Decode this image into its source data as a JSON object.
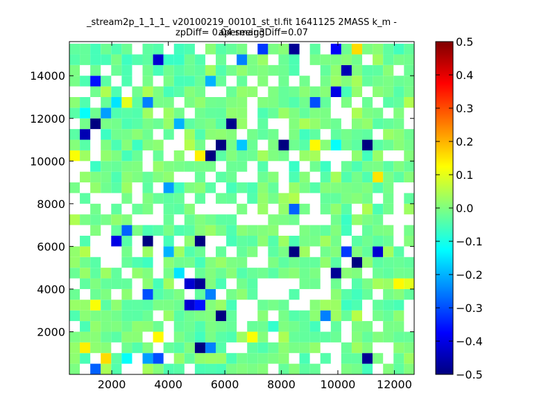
{
  "chart_data": {
    "type": "heatmap",
    "title": "_stream2p_1_1_1_ v20100219_00101_st_tl.fit 1641125 2MASS k_m - apermag3",
    "subtitle": "zpDiff= 0.04 seeingDiff=0.07",
    "xlim": [
      500,
      12700
    ],
    "ylim": [
      0,
      15600
    ],
    "xticks": [
      "2000",
      "4000",
      "6000",
      "8000",
      "10000",
      "12000"
    ],
    "yticks": [
      "2000",
      "4000",
      "6000",
      "8000",
      "10000",
      "12000",
      "14000"
    ],
    "bin": {
      "x0": 500,
      "y0": 0,
      "dx": 370,
      "dy": 500,
      "nx": 33,
      "ny": 31
    },
    "colorbar": {
      "min": -0.5,
      "max": 0.5,
      "colormap": "jet",
      "ticks": [
        "0.5",
        "0.4",
        "0.3",
        "0.2",
        "0.1",
        "0.0",
        "−0.1",
        "−0.2",
        "−0.3",
        "−0.4",
        "−0.5"
      ]
    },
    "outlier_cells": [
      {
        "ix": 8,
        "iy": 29,
        "value": -0.42
      },
      {
        "ix": 2,
        "iy": 27,
        "value": -0.36
      },
      {
        "ix": 16,
        "iy": 29,
        "value": -0.25
      },
      {
        "ix": 18,
        "iy": 30,
        "value": -0.32
      },
      {
        "ix": 21,
        "iy": 30,
        "value": -0.48
      },
      {
        "ix": 25,
        "iy": 30,
        "value": -0.38
      },
      {
        "ix": 26,
        "iy": 28,
        "value": -0.45
      },
      {
        "ix": 23,
        "iy": 25,
        "value": -0.3
      },
      {
        "ix": 25,
        "iy": 26,
        "value": -0.4
      },
      {
        "ix": 13,
        "iy": 27,
        "value": -0.2
      },
      {
        "ix": 4,
        "iy": 25,
        "value": -0.15
      },
      {
        "ix": 3,
        "iy": 24,
        "value": -0.22
      },
      {
        "ix": 7,
        "iy": 25,
        "value": -0.25
      },
      {
        "ix": 1,
        "iy": 24,
        "value": -0.12
      },
      {
        "ix": 2,
        "iy": 23,
        "value": -0.5
      },
      {
        "ix": 1,
        "iy": 22,
        "value": -0.45
      },
      {
        "ix": 15,
        "iy": 23,
        "value": -0.49
      },
      {
        "ix": 10,
        "iy": 23,
        "value": -0.2
      },
      {
        "ix": 14,
        "iy": 21,
        "value": -0.5
      },
      {
        "ix": 13,
        "iy": 20,
        "value": -0.5
      },
      {
        "ix": 20,
        "iy": 21,
        "value": -0.5
      },
      {
        "ix": 25,
        "iy": 21,
        "value": -0.12
      },
      {
        "ix": 28,
        "iy": 21,
        "value": -0.5
      },
      {
        "ix": 9,
        "iy": 17,
        "value": -0.22
      },
      {
        "ix": 16,
        "iy": 21,
        "value": -0.18
      },
      {
        "ix": 21,
        "iy": 15,
        "value": -0.28
      },
      {
        "ix": 5,
        "iy": 13,
        "value": -0.28
      },
      {
        "ix": 4,
        "iy": 12,
        "value": -0.4
      },
      {
        "ix": 7,
        "iy": 12,
        "value": -0.5
      },
      {
        "ix": 12,
        "iy": 12,
        "value": -0.5
      },
      {
        "ix": 21,
        "iy": 11,
        "value": -0.5
      },
      {
        "ix": 26,
        "iy": 11,
        "value": -0.32
      },
      {
        "ix": 29,
        "iy": 11,
        "value": -0.42
      },
      {
        "ix": 27,
        "iy": 10,
        "value": -0.5
      },
      {
        "ix": 25,
        "iy": 9,
        "value": -0.48
      },
      {
        "ix": 9,
        "iy": 11,
        "value": -0.2
      },
      {
        "ix": 10,
        "iy": 9,
        "value": -0.15
      },
      {
        "ix": 11,
        "iy": 8,
        "value": -0.42
      },
      {
        "ix": 12,
        "iy": 8,
        "value": -0.48
      },
      {
        "ix": 7,
        "iy": 7,
        "value": -0.3
      },
      {
        "ix": 13,
        "iy": 7,
        "value": -0.25
      },
      {
        "ix": 12,
        "iy": 6,
        "value": -0.36
      },
      {
        "ix": 11,
        "iy": 6,
        "value": -0.42
      },
      {
        "ix": 14,
        "iy": 5,
        "value": -0.5
      },
      {
        "ix": 24,
        "iy": 5,
        "value": -0.25
      },
      {
        "ix": 13,
        "iy": 2,
        "value": -0.25
      },
      {
        "ix": 12,
        "iy": 2,
        "value": -0.5
      },
      {
        "ix": 7,
        "iy": 1,
        "value": -0.22
      },
      {
        "ix": 8,
        "iy": 1,
        "value": -0.3
      },
      {
        "ix": 2,
        "iy": 0,
        "value": -0.28
      },
      {
        "ix": 5,
        "iy": 1,
        "value": -0.12
      },
      {
        "ix": 28,
        "iy": 1,
        "value": -0.48
      },
      {
        "ix": 1,
        "iy": 11,
        "value": 0.05
      },
      {
        "ix": 32,
        "iy": 8,
        "value": 0.1
      },
      {
        "ix": 31,
        "iy": 8,
        "value": 0.13
      },
      {
        "ix": 0,
        "iy": 20,
        "value": 0.12
      },
      {
        "ix": 12,
        "iy": 20,
        "value": 0.14
      },
      {
        "ix": 23,
        "iy": 21,
        "value": 0.13
      },
      {
        "ix": 29,
        "iy": 18,
        "value": 0.15
      },
      {
        "ix": 2,
        "iy": 6,
        "value": 0.12
      },
      {
        "ix": 1,
        "iy": 2,
        "value": 0.14
      },
      {
        "ix": 3,
        "iy": 1,
        "value": 0.16
      },
      {
        "ix": 8,
        "iy": 3,
        "value": 0.13
      },
      {
        "ix": 17,
        "iy": 3,
        "value": 0.12
      },
      {
        "ix": 27,
        "iy": 30,
        "value": 0.16
      },
      {
        "ix": 5,
        "iy": 25,
        "value": 0.1
      }
    ]
  }
}
